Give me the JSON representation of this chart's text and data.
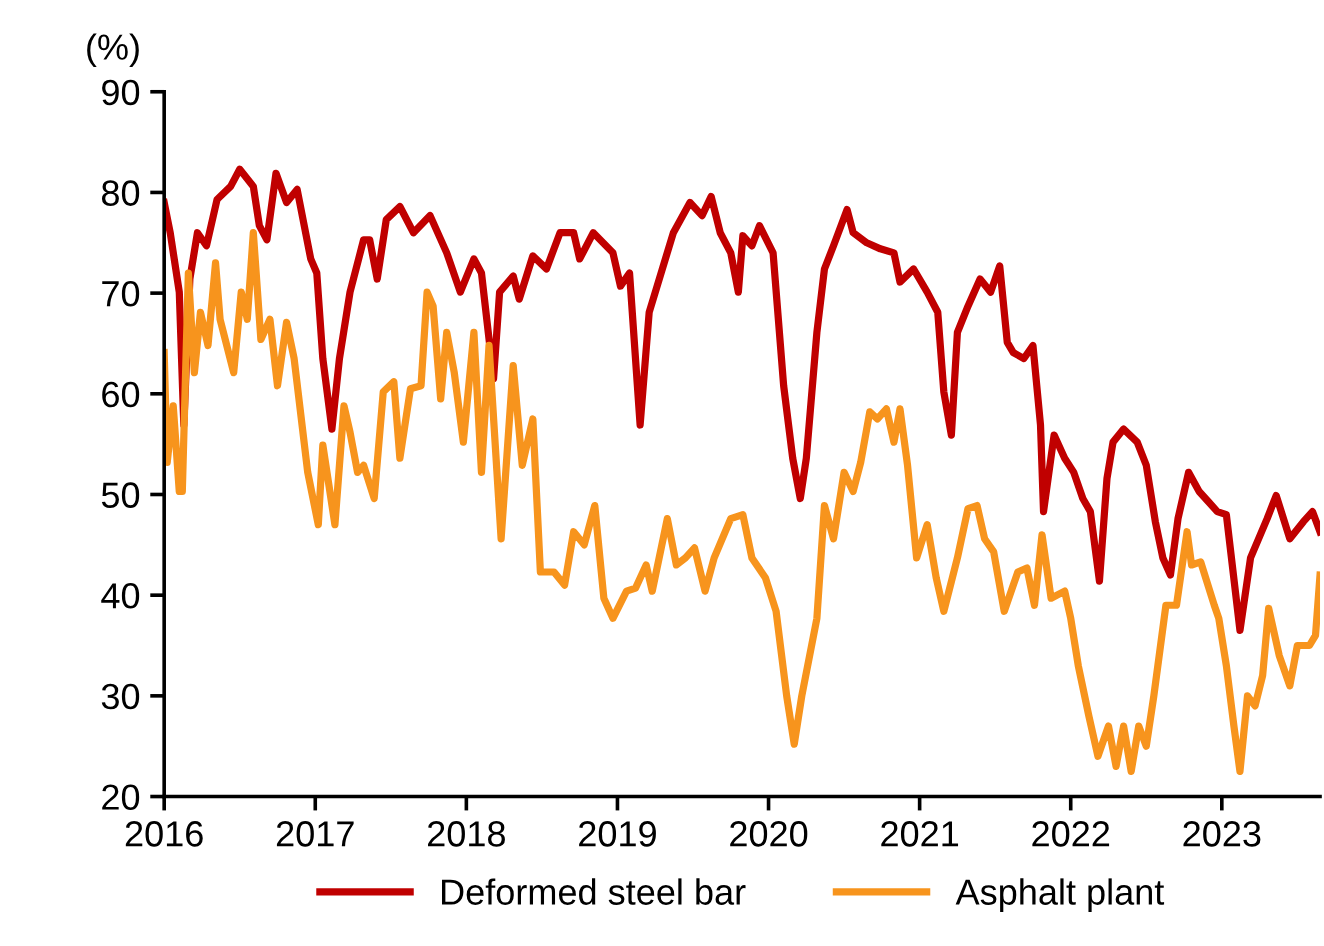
{
  "chart_data": {
    "type": "line",
    "ylabel": "(%)",
    "xlim": [
      2016,
      2023.65
    ],
    "xticks": [
      2016,
      2017,
      2018,
      2019,
      2020,
      2021,
      2022,
      2023
    ],
    "ylim": [
      20,
      90
    ],
    "yticks": [
      20,
      30,
      40,
      50,
      60,
      70,
      80,
      90
    ],
    "grid": false,
    "legend": "bottom",
    "marker": "none",
    "line_style": "solid",
    "series": [
      {
        "name": "Deformed steel bar",
        "color": "#c00000",
        "x": [
          2016.0,
          2016.04,
          2016.1,
          2016.13,
          2016.17,
          2016.22,
          2016.28,
          2016.35,
          2016.44,
          2016.5,
          2016.59,
          2016.63,
          2016.68,
          2016.74,
          2016.81,
          2016.88,
          2016.97,
          2017.01,
          2017.05,
          2017.11,
          2017.16,
          2017.23,
          2017.32,
          2017.36,
          2017.41,
          2017.47,
          2017.56,
          2017.65,
          2017.76,
          2017.87,
          2017.96,
          2018.05,
          2018.1,
          2018.18,
          2018.22,
          2018.31,
          2018.35,
          2018.44,
          2018.53,
          2018.62,
          2018.71,
          2018.75,
          2018.84,
          2018.97,
          2019.02,
          2019.08,
          2019.15,
          2019.21,
          2019.37,
          2019.48,
          2019.56,
          2019.62,
          2019.68,
          2019.75,
          2019.8,
          2019.83,
          2019.89,
          2019.94,
          2020.03,
          2020.1,
          2020.16,
          2020.21,
          2020.25,
          2020.32,
          2020.37,
          2020.43,
          2020.52,
          2020.56,
          2020.65,
          2020.74,
          2020.83,
          2020.87,
          2020.96,
          2021.05,
          2021.12,
          2021.16,
          2021.21,
          2021.25,
          2021.32,
          2021.4,
          2021.47,
          2021.53,
          2021.58,
          2021.62,
          2021.69,
          2021.75,
          2021.8,
          2021.82,
          2021.89,
          2021.96,
          2022.02,
          2022.08,
          2022.13,
          2022.19,
          2022.24,
          2022.28,
          2022.35,
          2022.44,
          2022.5,
          2022.56,
          2022.61,
          2022.66,
          2022.71,
          2022.78,
          2022.85,
          2022.91,
          2022.97,
          2023.03,
          2023.12,
          2023.19,
          2023.3,
          2023.36,
          2023.45,
          2023.54,
          2023.6,
          2023.65
        ],
        "values": [
          79.0,
          76.0,
          70.1,
          56.9,
          71.4,
          76.0,
          74.7,
          79.3,
          80.6,
          82.3,
          80.6,
          76.7,
          75.3,
          81.9,
          79.0,
          80.3,
          73.4,
          72.0,
          63.5,
          56.5,
          63.5,
          70.1,
          75.3,
          75.3,
          71.4,
          77.3,
          78.6,
          76.0,
          77.7,
          74.0,
          70.1,
          73.4,
          72.0,
          61.5,
          70.1,
          71.7,
          69.4,
          73.7,
          72.4,
          76.0,
          76.0,
          73.4,
          76.0,
          74.0,
          70.7,
          72.0,
          56.9,
          68.1,
          76.0,
          79.0,
          77.7,
          79.6,
          76.0,
          74.0,
          70.1,
          75.7,
          74.7,
          76.7,
          74.0,
          60.8,
          53.6,
          49.6,
          53.6,
          66.1,
          72.4,
          74.7,
          78.3,
          76.0,
          75.0,
          74.4,
          74.0,
          71.1,
          72.4,
          70.1,
          68.1,
          60.2,
          55.9,
          66.1,
          68.7,
          71.4,
          70.1,
          72.7,
          65.1,
          64.1,
          63.5,
          64.8,
          56.9,
          48.3,
          55.9,
          53.6,
          52.2,
          49.6,
          48.3,
          41.4,
          51.6,
          55.2,
          56.5,
          55.2,
          52.9,
          47.3,
          43.7,
          42.0,
          47.6,
          52.2,
          50.3,
          49.3,
          48.3,
          48.0,
          36.5,
          43.7,
          47.6,
          49.9,
          45.6,
          47.3,
          48.3,
          46.3
        ]
      },
      {
        "name": "Asphalt plant",
        "color": "#f7941d",
        "x": [
          2016.0,
          2016.02,
          2016.06,
          2016.1,
          2016.12,
          2016.16,
          2016.2,
          2016.24,
          2016.29,
          2016.34,
          2016.37,
          2016.46,
          2016.51,
          2016.55,
          2016.59,
          2016.64,
          2016.7,
          2016.75,
          2016.81,
          2016.86,
          2016.95,
          2017.02,
          2017.05,
          2017.13,
          2017.19,
          2017.23,
          2017.28,
          2017.32,
          2017.39,
          2017.45,
          2017.52,
          2017.56,
          2017.63,
          2017.7,
          2017.74,
          2017.78,
          2017.83,
          2017.87,
          2017.92,
          2017.98,
          2018.05,
          2018.1,
          2018.15,
          2018.23,
          2018.31,
          2018.37,
          2018.44,
          2018.49,
          2018.58,
          2018.65,
          2018.71,
          2018.78,
          2018.85,
          2018.91,
          2018.97,
          2019.06,
          2019.12,
          2019.19,
          2019.23,
          2019.33,
          2019.39,
          2019.45,
          2019.51,
          2019.58,
          2019.64,
          2019.75,
          2019.83,
          2019.89,
          2019.98,
          2020.05,
          2020.12,
          2020.17,
          2020.22,
          2020.32,
          2020.37,
          2020.43,
          2020.5,
          2020.56,
          2020.61,
          2020.67,
          2020.72,
          2020.78,
          2020.83,
          2020.87,
          2020.92,
          2020.98,
          2021.05,
          2021.11,
          2021.16,
          2021.25,
          2021.32,
          2021.38,
          2021.43,
          2021.49,
          2021.56,
          2021.65,
          2021.71,
          2021.76,
          2021.81,
          2021.87,
          2021.96,
          2022.0,
          2022.05,
          2022.12,
          2022.18,
          2022.25,
          2022.3,
          2022.35,
          2022.4,
          2022.45,
          2022.5,
          2022.55,
          2022.63,
          2022.7,
          2022.77,
          2022.8,
          2022.86,
          2022.95,
          2022.98,
          2023.03,
          2023.08,
          2023.12,
          2023.17,
          2023.22,
          2023.27,
          2023.31,
          2023.38,
          2023.45,
          2023.5,
          2023.58,
          2023.62,
          2023.65
        ],
        "values": [
          64.1,
          53.2,
          58.8,
          50.3,
          50.3,
          72.0,
          62.1,
          68.1,
          64.8,
          73.0,
          67.4,
          62.1,
          70.1,
          67.4,
          76.0,
          65.4,
          67.4,
          60.8,
          67.1,
          63.5,
          52.2,
          47.0,
          54.9,
          47.0,
          58.8,
          56.2,
          52.2,
          52.9,
          49.6,
          60.2,
          61.2,
          53.6,
          60.5,
          60.8,
          70.1,
          68.7,
          59.5,
          66.1,
          62.1,
          55.2,
          66.1,
          52.2,
          64.8,
          45.6,
          62.8,
          52.9,
          57.5,
          42.3,
          42.3,
          41.0,
          46.3,
          45.0,
          48.9,
          39.7,
          37.7,
          40.4,
          40.7,
          43.0,
          40.4,
          47.6,
          43.0,
          43.7,
          44.7,
          40.4,
          43.7,
          47.6,
          48.0,
          43.7,
          41.7,
          38.4,
          30.0,
          25.2,
          30.0,
          37.7,
          48.9,
          45.6,
          52.2,
          50.3,
          53.2,
          58.2,
          57.5,
          58.5,
          55.2,
          58.5,
          52.9,
          43.7,
          47.0,
          41.7,
          38.4,
          43.7,
          48.6,
          48.9,
          45.6,
          44.3,
          38.4,
          42.3,
          42.7,
          39.0,
          46.0,
          39.7,
          40.4,
          37.7,
          33.0,
          28.0,
          24.0,
          27.0,
          23.0,
          27.0,
          22.5,
          27.0,
          25.0,
          30.0,
          39.0,
          39.0,
          46.3,
          43.0,
          43.3,
          39.0,
          37.7,
          33.0,
          27.0,
          22.5,
          30.0,
          29.0,
          32.0,
          38.7,
          34.0,
          31.0,
          35.0,
          35.0,
          36.0,
          42.0
        ]
      }
    ]
  }
}
